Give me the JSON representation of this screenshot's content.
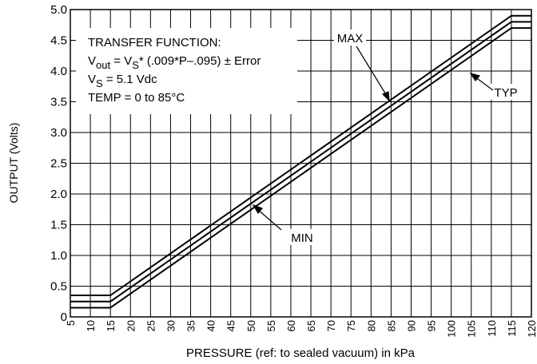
{
  "chart_data": {
    "type": "line",
    "x_label": "PRESSURE (ref: to sealed vacuum) in kPa",
    "y_label": "OUTPUT (Volts)",
    "x": [
      5,
      15,
      115,
      120
    ],
    "series": [
      {
        "name": "MAX",
        "color": "#000000",
        "values": [
          0.35,
          0.35,
          4.9,
          4.9
        ]
      },
      {
        "name": "TYP",
        "color": "#000000",
        "values": [
          0.25,
          0.25,
          4.8,
          4.8
        ]
      },
      {
        "name": "MIN",
        "color": "#000000",
        "values": [
          0.15,
          0.15,
          4.7,
          4.7
        ]
      }
    ],
    "xlim": [
      5,
      120
    ],
    "xticks": [
      5,
      10,
      15,
      20,
      25,
      30,
      35,
      40,
      45,
      50,
      55,
      60,
      65,
      70,
      75,
      80,
      85,
      90,
      95,
      100,
      105,
      110,
      115,
      120
    ],
    "ylim": [
      0,
      5
    ],
    "yticks": [
      0,
      0.5,
      {
        "value": 1,
        "label": "1.0"
      },
      1.5,
      {
        "value": 2,
        "label": "2.0"
      },
      2.5,
      {
        "value": 3,
        "label": "3.0"
      },
      3.5,
      {
        "value": 4,
        "label": "4.0"
      },
      4.5,
      {
        "value": 5,
        "label": "5.0"
      }
    ],
    "grid": true,
    "annotation": [
      [
        {
          "text": "TRANSFER FUNCTION:"
        }
      ],
      [
        {
          "text": "V"
        },
        {
          "sub": "out"
        },
        {
          "text": " = V"
        },
        {
          "sub": "S"
        },
        {
          "text": "* (.009*P–.095) ± Error"
        }
      ],
      [
        {
          "text": "V"
        },
        {
          "sub": "S"
        },
        {
          "text": " = 5.1 Vdc"
        }
      ],
      [
        {
          "text": "TEMP = 0 to 85°C"
        }
      ]
    ]
  }
}
